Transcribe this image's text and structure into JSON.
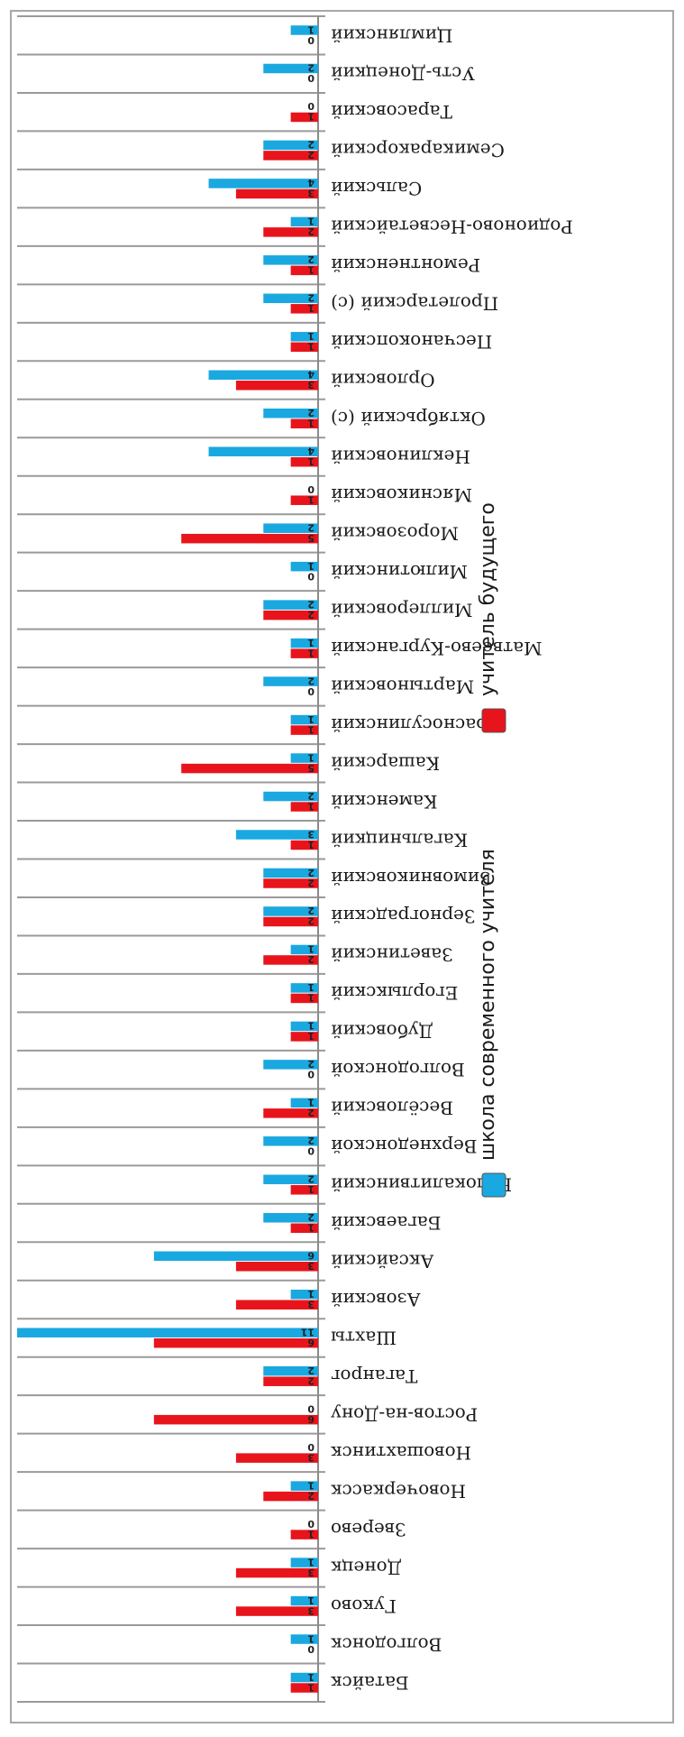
{
  "chart_data": {
    "type": "bar",
    "orientation": "horizontal",
    "rendered_upside_down": true,
    "title": "",
    "xlabel": "",
    "ylabel": "",
    "xlim": [
      0,
      11
    ],
    "grid": true,
    "legend_position": "right",
    "categories": [
      "Батайск",
      "Волгодонск",
      "Гуково",
      "Донецк",
      "Зверево",
      "Новочеркасск",
      "Новошахтинск",
      "Ростов-на-Дону",
      "Таганрог",
      "Шахты",
      "Азовский",
      "Аксайский",
      "Багаевский",
      "Белокалитвинский",
      "Верхнедонской",
      "Весёловский",
      "Волгодонской",
      "Дубовский",
      "Егорлыкский",
      "Заветинский",
      "Зерноградский",
      "Зимовниковский",
      "Кагальницкий",
      "Каменский",
      "Кашарский",
      "Красносулинский",
      "Мартыновский",
      "Матвеево-Курганский",
      "Миллеровский",
      "Милютинский",
      "Морозовский",
      "Мясниковский",
      "Неклиновский",
      "Октябрьский (с)",
      "Орловский",
      "Песчанокопский",
      "Пролетарский (с)",
      "Ремонтненский",
      "Родионово-Несветайский",
      "Сальский",
      "Семикаракорский",
      "Тарасовский",
      "Усть-Донецкий",
      "Цимлянский"
    ],
    "series": [
      {
        "name": "учитель будущего",
        "color": "#e8141c",
        "values": [
          1,
          0,
          3,
          3,
          1,
          2,
          3,
          6,
          2,
          6,
          3,
          3,
          1,
          1,
          0,
          2,
          0,
          1,
          1,
          2,
          2,
          2,
          1,
          1,
          5,
          1,
          0,
          1,
          2,
          0,
          5,
          1,
          1,
          1,
          3,
          1,
          1,
          1,
          2,
          3,
          2,
          1,
          0,
          0
        ]
      },
      {
        "name": "школа современного учителя",
        "color": "#1aa8e0",
        "values": [
          1,
          1,
          1,
          1,
          0,
          1,
          0,
          0,
          2,
          11,
          1,
          6,
          2,
          2,
          2,
          1,
          2,
          1,
          1,
          1,
          2,
          2,
          3,
          2,
          1,
          1,
          2,
          1,
          2,
          1,
          2,
          0,
          4,
          2,
          4,
          1,
          2,
          2,
          1,
          4,
          2,
          0,
          2,
          1
        ]
      }
    ]
  }
}
